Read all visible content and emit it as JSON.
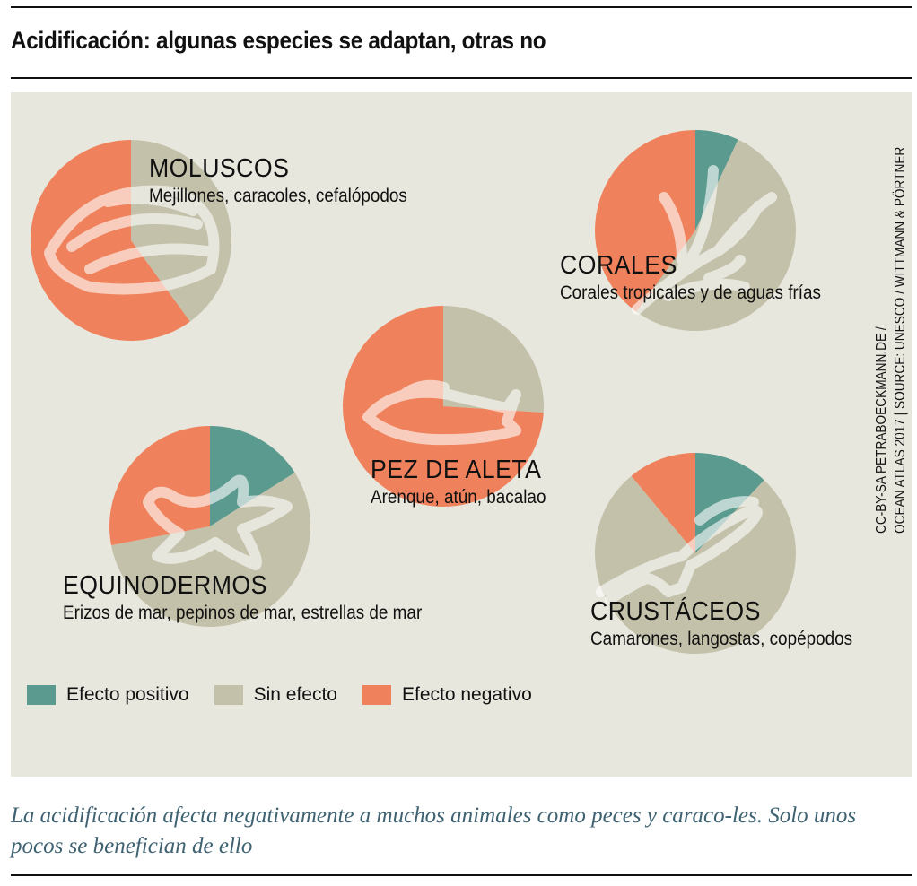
{
  "title": "Acidificación: algunas especies se adaptan, otras no",
  "credit": [
    "CC-BY-SA PETRABOECKMANN.DE /",
    "OCEAN ATLAS 2017 | SOURCE: UNESCO / WITTMANN & PÖRTNER"
  ],
  "caption": "La acidificación afecta negativamente a muchos animales como peces y caraco-les. Solo unos pocos se benefician de ello",
  "colors": {
    "positive": "#5a9a8f",
    "none": "#c4c1ab",
    "negative": "#ef825c",
    "background": "#e8e7dd"
  },
  "chart_data": {
    "type": "pie",
    "legend": {
      "placement": "bottom-left",
      "entries": [
        "Efecto positivo",
        "Sin efecto",
        "Efecto negativo"
      ]
    },
    "pies": [
      {
        "name": "MOLUSCOS",
        "subtitle": "Mejillones, caracoles, cefalópodos",
        "icon": "clam-icon",
        "values": {
          "Efecto positivo": 0,
          "Sin efecto": 40,
          "Efecto negativo": 60
        }
      },
      {
        "name": "CORALES",
        "subtitle": "Corales tropicales y de aguas frías",
        "icon": "coral-icon",
        "values": {
          "Efecto positivo": 7,
          "Sin efecto": 53,
          "Efecto negativo": 40
        }
      },
      {
        "name": "PEZ DE ALETA",
        "subtitle": "Arenque, atún, bacalao",
        "icon": "fish-icon",
        "values": {
          "Efecto positivo": 0,
          "Sin efecto": 26,
          "Efecto negativo": 74
        }
      },
      {
        "name": "EQUINODERMOS",
        "subtitle": "Erizos de mar, pepinos de mar, estrellas de mar",
        "icon": "starfish-icon",
        "values": {
          "Efecto positivo": 16,
          "Sin efecto": 56,
          "Efecto negativo": 28
        }
      },
      {
        "name": "CRUSTÁCEOS",
        "subtitle": "Camarones, langostas, copépodos",
        "icon": "lobster-icon",
        "values": {
          "Efecto positivo": 12,
          "Sin efecto": 77,
          "Efecto negativo": 11
        }
      }
    ]
  }
}
